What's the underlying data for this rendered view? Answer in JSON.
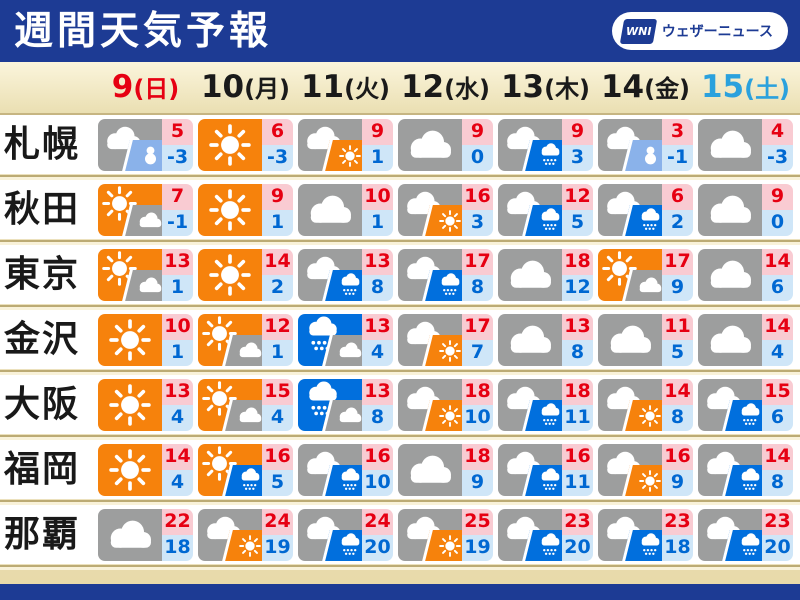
{
  "header": {
    "title": "週間天気予報",
    "logo": {
      "mark": "WNI",
      "text": "ウェザーニュース"
    }
  },
  "dates": [
    {
      "num": "9",
      "suffix": "(日)",
      "color": "#e60012"
    },
    {
      "num": "10",
      "suffix": "(月)",
      "color": "#1a1a1a"
    },
    {
      "num": "11",
      "suffix": "(火)",
      "color": "#1a1a1a"
    },
    {
      "num": "12",
      "suffix": "(水)",
      "color": "#1a1a1a"
    },
    {
      "num": "13",
      "suffix": "(木)",
      "color": "#1a1a1a"
    },
    {
      "num": "14",
      "suffix": "(金)",
      "color": "#1a1a1a"
    },
    {
      "num": "15",
      "suffix": "(土)",
      "color": "#2ba1dd"
    }
  ],
  "colors": {
    "navy": "#1d3b94",
    "sunny": "#f6820c",
    "cloudy": "#9d9e9e",
    "rain": "#016fdd",
    "snow": "#8ab2ea",
    "high_bg": "#f9cbd2",
    "high_text": "#e60012",
    "low_bg": "#cfe6f8",
    "low_text": "#0068d2"
  },
  "cities": [
    {
      "name": "札幌",
      "days": [
        {
          "icon": "cloud-then-snow",
          "high": "5",
          "low": "-3"
        },
        {
          "icon": "sunny",
          "high": "6",
          "low": "-3"
        },
        {
          "icon": "cloud-then-sun",
          "high": "9",
          "low": "1"
        },
        {
          "icon": "cloudy",
          "high": "9",
          "low": "0"
        },
        {
          "icon": "cloud-then-rain",
          "high": "9",
          "low": "3"
        },
        {
          "icon": "cloud-then-snow",
          "high": "3",
          "low": "-1"
        },
        {
          "icon": "cloudy",
          "high": "4",
          "low": "-3"
        }
      ]
    },
    {
      "name": "秋田",
      "days": [
        {
          "icon": "sun-then-cloud",
          "high": "7",
          "low": "-1"
        },
        {
          "icon": "sunny",
          "high": "9",
          "low": "1"
        },
        {
          "icon": "cloudy",
          "high": "10",
          "low": "1"
        },
        {
          "icon": "cloud-then-sun",
          "high": "16",
          "low": "3"
        },
        {
          "icon": "cloud-then-rain",
          "high": "12",
          "low": "5"
        },
        {
          "icon": "cloud-then-rain",
          "high": "6",
          "low": "2"
        },
        {
          "icon": "cloudy",
          "high": "9",
          "low": "0"
        }
      ]
    },
    {
      "name": "東京",
      "days": [
        {
          "icon": "sun-then-cloud",
          "high": "13",
          "low": "1"
        },
        {
          "icon": "sunny",
          "high": "14",
          "low": "2"
        },
        {
          "icon": "cloud-then-rain",
          "high": "13",
          "low": "8"
        },
        {
          "icon": "cloud-then-rain",
          "high": "17",
          "low": "8"
        },
        {
          "icon": "cloudy",
          "high": "18",
          "low": "12"
        },
        {
          "icon": "sun-then-cloud",
          "high": "17",
          "low": "9"
        },
        {
          "icon": "cloudy",
          "high": "14",
          "low": "6"
        }
      ]
    },
    {
      "name": "金沢",
      "days": [
        {
          "icon": "sunny",
          "high": "10",
          "low": "1"
        },
        {
          "icon": "sun-then-cloud",
          "high": "12",
          "low": "1"
        },
        {
          "icon": "rain-then-cloud",
          "high": "13",
          "low": "4"
        },
        {
          "icon": "cloud-then-sun",
          "high": "17",
          "low": "7"
        },
        {
          "icon": "cloudy",
          "high": "13",
          "low": "8"
        },
        {
          "icon": "cloudy",
          "high": "11",
          "low": "5"
        },
        {
          "icon": "cloudy",
          "high": "14",
          "low": "4"
        }
      ]
    },
    {
      "name": "大阪",
      "days": [
        {
          "icon": "sunny",
          "high": "13",
          "low": "4"
        },
        {
          "icon": "sun-then-cloud",
          "high": "15",
          "low": "4"
        },
        {
          "icon": "rain-then-cloud",
          "high": "13",
          "low": "8"
        },
        {
          "icon": "cloud-then-sun",
          "high": "18",
          "low": "10"
        },
        {
          "icon": "cloud-then-rain",
          "high": "18",
          "low": "11"
        },
        {
          "icon": "cloud-then-sun",
          "high": "14",
          "low": "8"
        },
        {
          "icon": "cloud-then-rain",
          "high": "15",
          "low": "6"
        }
      ]
    },
    {
      "name": "福岡",
      "days": [
        {
          "icon": "sunny",
          "high": "14",
          "low": "4"
        },
        {
          "icon": "sun-then-rain",
          "high": "16",
          "low": "5"
        },
        {
          "icon": "cloud-then-rain",
          "high": "16",
          "low": "10"
        },
        {
          "icon": "cloudy",
          "high": "18",
          "low": "9"
        },
        {
          "icon": "cloud-then-rain",
          "high": "16",
          "low": "11"
        },
        {
          "icon": "cloud-then-sun",
          "high": "16",
          "low": "9"
        },
        {
          "icon": "cloud-then-rain",
          "high": "14",
          "low": "8"
        }
      ]
    },
    {
      "name": "那覇",
      "days": [
        {
          "icon": "cloudy",
          "high": "22",
          "low": "18"
        },
        {
          "icon": "cloud-then-sun",
          "high": "24",
          "low": "19"
        },
        {
          "icon": "cloud-then-rain",
          "high": "24",
          "low": "20"
        },
        {
          "icon": "cloud-then-sun",
          "high": "25",
          "low": "19"
        },
        {
          "icon": "cloud-then-rain",
          "high": "23",
          "low": "20"
        },
        {
          "icon": "cloud-then-rain",
          "high": "23",
          "low": "18"
        },
        {
          "icon": "cloud-then-rain",
          "high": "23",
          "low": "20"
        }
      ]
    }
  ]
}
